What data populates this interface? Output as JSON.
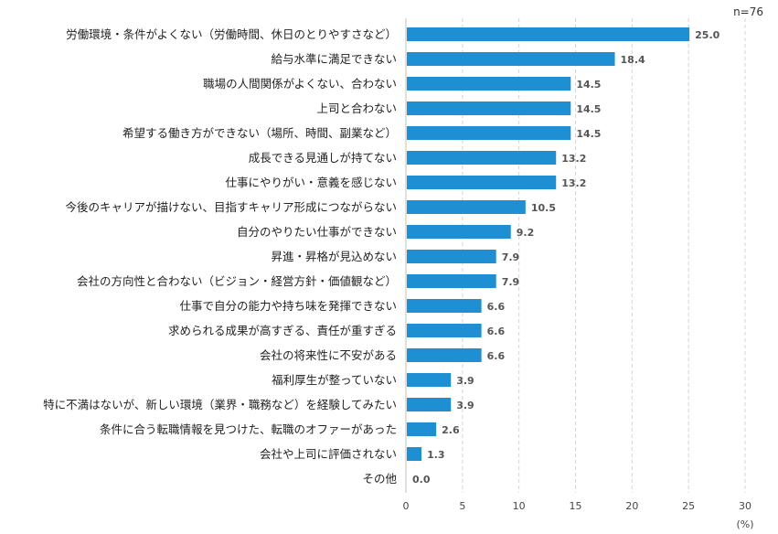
{
  "chart_data": {
    "type": "bar",
    "orientation": "horizontal",
    "sample_note": "n=76",
    "unit_label": "(%)",
    "xlim": [
      0,
      30
    ],
    "x_ticks": [
      0,
      5,
      10,
      15,
      20,
      25,
      30
    ],
    "grid": "vertical dashed",
    "bar_color": "#1f8fd4",
    "categories": [
      "労働環境・条件がよくない（労働時間、休日のとりやすさなど）",
      "給与水準に満足できない",
      "職場の人間関係がよくない、合わない",
      "上司と合わない",
      "希望する働き方ができない（場所、時間、副業など）",
      "成長できる見通しが持てない",
      "仕事にやりがい・意義を感じない",
      "今後のキャリアが描けない、目指すキャリア形成につながらない",
      "自分のやりたい仕事ができない",
      "昇進・昇格が見込めない",
      "会社の方向性と合わない（ビジョン・経営方針・価値観など）",
      "仕事で自分の能力や持ち味を発揮できない",
      "求められる成果が高すぎる、責任が重すぎる",
      "会社の将来性に不安がある",
      "福利厚生が整っていない",
      "特に不満はないが、新しい環境（業界・職務など）を経験してみたい",
      "条件に合う転職情報を見つけた、転職のオファーがあった",
      "会社や上司に評価されない",
      "その他"
    ],
    "values": [
      25.0,
      18.4,
      14.5,
      14.5,
      14.5,
      13.2,
      13.2,
      10.5,
      9.2,
      7.9,
      7.9,
      6.6,
      6.6,
      6.6,
      3.9,
      3.9,
      2.6,
      1.3,
      0.0
    ]
  }
}
